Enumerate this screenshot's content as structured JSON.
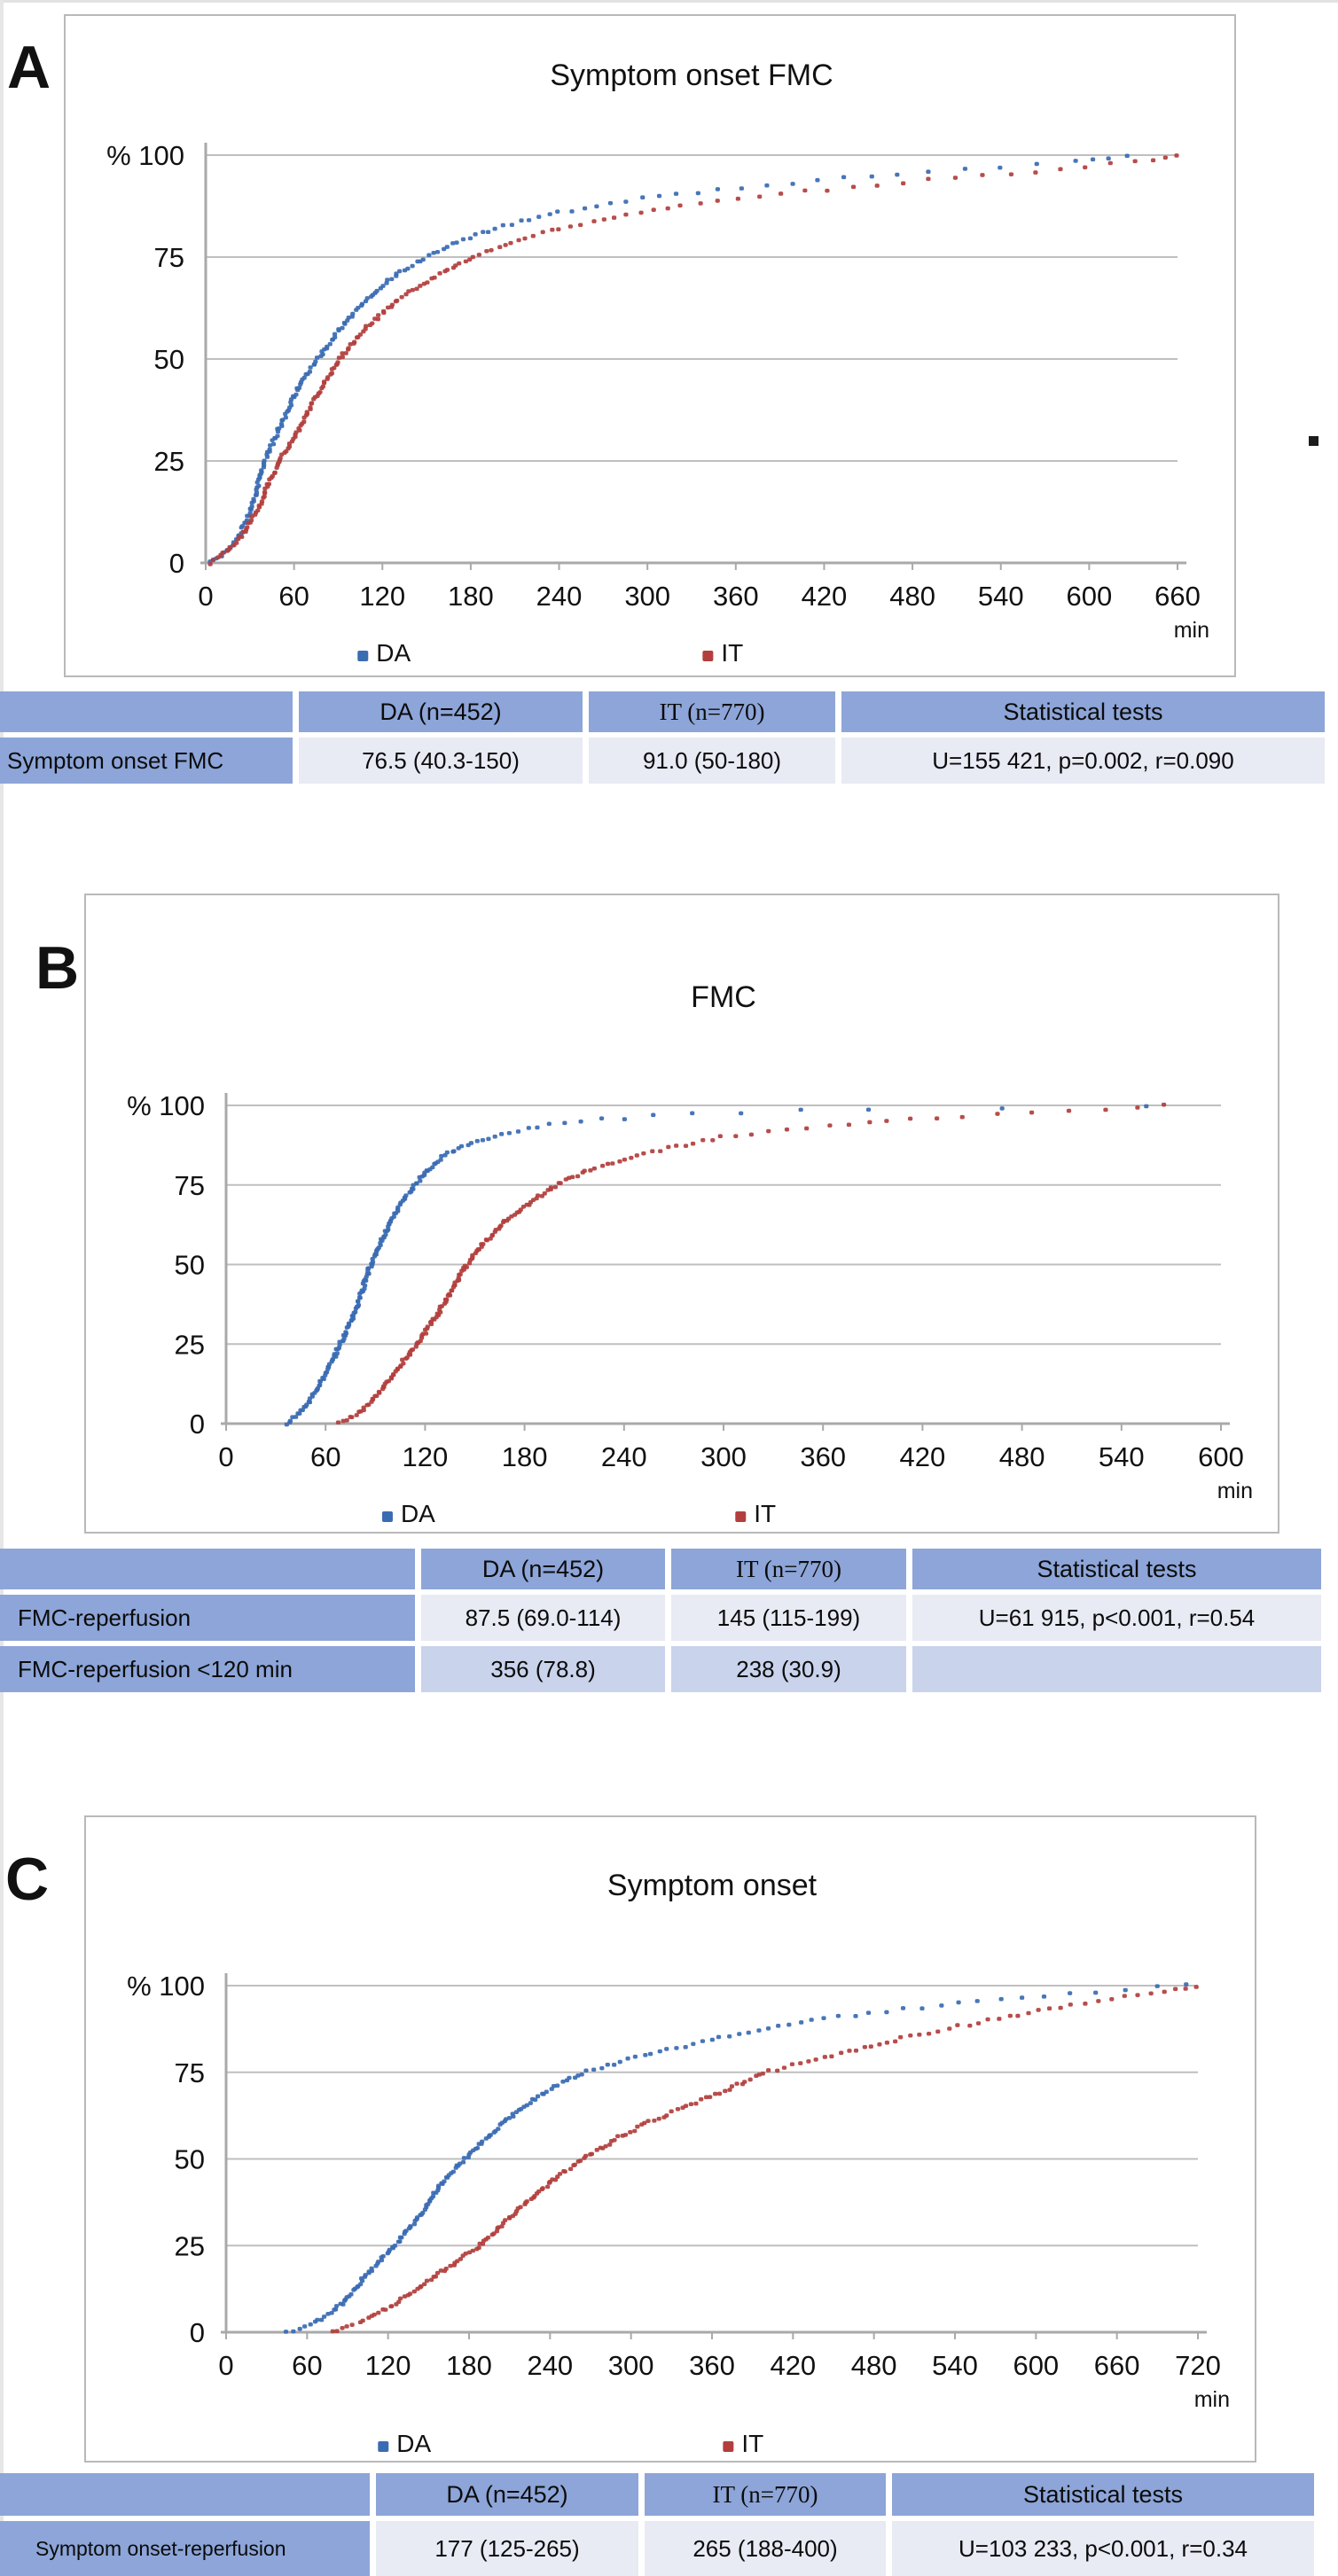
{
  "panels": [
    {
      "label": "A",
      "table": {
        "headers": [
          "",
          "DA (n=452)",
          "IT (n=770)",
          "Statistical tests"
        ],
        "rows": [
          [
            "Symptom onset FMC",
            "76.5 (40.3-150)",
            "91.0 (50-180)",
            "U=155 421, p=0.002, r=0.090"
          ]
        ]
      }
    },
    {
      "label": "B",
      "table": {
        "headers": [
          "",
          "DA (n=452)",
          "IT (n=770)",
          "Statistical tests"
        ],
        "rows": [
          [
            "FMC-reperfusion",
            "87.5 (69.0-114)",
            "145 (115-199)",
            "U=61 915, p<0.001, r=0.54"
          ],
          [
            "FMC-reperfusion <120 min",
            "356 (78.8)",
            "238 (30.9)",
            ""
          ]
        ]
      }
    },
    {
      "label": "C",
      "table": {
        "headers": [
          "",
          "DA (n=452)",
          "IT (n=770)",
          "Statistical tests"
        ],
        "rows": [
          [
            "Symptom onset-reperfusion",
            "177 (125-265)",
            "265 (188-400)",
            "U=103 233, p<0.001, r=0.34"
          ]
        ]
      }
    }
  ],
  "colors": {
    "series_da": "#3a6cb3",
    "series_it": "#b23f3d",
    "table_header": "#8da5d8",
    "table_row_light": "#e8eaf4",
    "table_row_alt": "#c9d3ec"
  },
  "chart_data": [
    {
      "type": "scatter",
      "title": "Symptom onset FMC",
      "x_unit": "min",
      "y_prefix": "%",
      "ylim": [
        0,
        100
      ],
      "xlim": [
        0,
        660
      ],
      "x_max": 660,
      "grid": "horizontal",
      "legend_position": "bottom",
      "y_ticks": [
        100,
        75,
        50,
        25,
        0
      ],
      "x_ticks": [
        0,
        60,
        120,
        180,
        240,
        300,
        360,
        420,
        480,
        540,
        600,
        660
      ],
      "series": [
        {
          "name": "DA",
          "color": "#3a6cb3",
          "median": 76.5,
          "iqr": [
            40.3,
            150
          ],
          "points": [
            [
              3,
              0
            ],
            [
              12,
              2
            ],
            [
              22,
              6
            ],
            [
              30,
              12
            ],
            [
              40,
              25
            ],
            [
              50,
              33
            ],
            [
              60,
              41
            ],
            [
              70,
              47
            ],
            [
              76.5,
              50
            ],
            [
              90,
              57
            ],
            [
              105,
              63
            ],
            [
              120,
              68
            ],
            [
              135,
              72
            ],
            [
              150,
              75
            ],
            [
              170,
              78.5
            ],
            [
              200,
              82.5
            ],
            [
              240,
              86
            ],
            [
              280,
              88.5
            ],
            [
              320,
              90.5
            ],
            [
              360,
              92
            ],
            [
              420,
              94
            ],
            [
              480,
              95.8
            ],
            [
              540,
              97.2
            ],
            [
              590,
              98.3
            ],
            [
              625,
              100
            ]
          ]
        },
        {
          "name": "IT",
          "color": "#b23f3d",
          "median": 91.0,
          "iqr": [
            50,
            180
          ],
          "points": [
            [
              3,
              0
            ],
            [
              15,
              3
            ],
            [
              25,
              7
            ],
            [
              35,
              13
            ],
            [
              50,
              25
            ],
            [
              62,
              32
            ],
            [
              75,
              41
            ],
            [
              91,
              50
            ],
            [
              110,
              58
            ],
            [
              130,
              64.5
            ],
            [
              155,
              70
            ],
            [
              180,
              75
            ],
            [
              210,
              79
            ],
            [
              240,
              82
            ],
            [
              280,
              85
            ],
            [
              320,
              87.5
            ],
            [
              360,
              89.3
            ],
            [
              420,
              91.5
            ],
            [
              480,
              93.5
            ],
            [
              540,
              95.3
            ],
            [
              600,
              97.3
            ],
            [
              640,
              98.6
            ],
            [
              660,
              100
            ]
          ]
        }
      ]
    },
    {
      "type": "scatter",
      "title": "FMC",
      "x_unit": "min",
      "y_prefix": "%",
      "ylim": [
        0,
        100
      ],
      "xlim": [
        0,
        600
      ],
      "x_max": 600,
      "grid": "horizontal",
      "legend_position": "bottom",
      "y_ticks": [
        100,
        75,
        50,
        25,
        0
      ],
      "x_ticks": [
        0,
        60,
        120,
        180,
        240,
        300,
        360,
        420,
        480,
        540,
        600
      ],
      "series": [
        {
          "name": "DA",
          "color": "#3a6cb3",
          "median": 87.5,
          "iqr": [
            69.0,
            114
          ],
          "points": [
            [
              37,
              0
            ],
            [
              44,
              3
            ],
            [
              50,
              7
            ],
            [
              56,
              12
            ],
            [
              62,
              18
            ],
            [
              69,
              25
            ],
            [
              76,
              33
            ],
            [
              82,
              42
            ],
            [
              87.5,
              50
            ],
            [
              94,
              58
            ],
            [
              101,
              65
            ],
            [
              108,
              71
            ],
            [
              114,
              75
            ],
            [
              122,
              80
            ],
            [
              131,
              84
            ],
            [
              142,
              87
            ],
            [
              155,
              89.5
            ],
            [
              170,
              91.5
            ],
            [
              190,
              93.5
            ],
            [
              215,
              95
            ],
            [
              245,
              96.3
            ],
            [
              285,
              97.3
            ],
            [
              330,
              98.1
            ],
            [
              390,
              98.9
            ],
            [
              460,
              99.4
            ],
            [
              520,
              99.7
            ],
            [
              555,
              100
            ]
          ]
        },
        {
          "name": "IT",
          "color": "#b23f3d",
          "median": 145,
          "iqr": [
            115,
            199
          ],
          "points": [
            [
              68,
              0
            ],
            [
              76,
              2
            ],
            [
              86,
              6
            ],
            [
              96,
              12
            ],
            [
              106,
              19
            ],
            [
              115,
              25
            ],
            [
              126,
              33
            ],
            [
              136,
              42
            ],
            [
              145,
              50
            ],
            [
              156,
              57
            ],
            [
              167,
              63
            ],
            [
              182,
              69
            ],
            [
              199,
              75
            ],
            [
              218,
              79.5
            ],
            [
              242,
              83.5
            ],
            [
              270,
              87
            ],
            [
              300,
              90
            ],
            [
              330,
              91.8
            ],
            [
              365,
              93.3
            ],
            [
              400,
              95
            ],
            [
              440,
              96.5
            ],
            [
              480,
              97.6
            ],
            [
              520,
              98.6
            ],
            [
              545,
              99.3
            ],
            [
              565,
              100
            ]
          ]
        }
      ]
    },
    {
      "type": "scatter",
      "title": "Symptom onset",
      "x_unit": "min",
      "y_prefix": "%",
      "ylim": [
        0,
        100
      ],
      "xlim": [
        0,
        720
      ],
      "x_max": 720,
      "grid": "horizontal",
      "legend_position": "bottom",
      "y_ticks": [
        100,
        75,
        50,
        25,
        0
      ],
      "x_ticks": [
        0,
        60,
        120,
        180,
        240,
        300,
        360,
        420,
        480,
        540,
        600,
        660,
        720
      ],
      "series": [
        {
          "name": "DA",
          "color": "#3a6cb3",
          "median": 177,
          "iqr": [
            125,
            265
          ],
          "points": [
            [
              45,
              0
            ],
            [
              62,
              2
            ],
            [
              76,
              5
            ],
            [
              90,
              10
            ],
            [
              105,
              17
            ],
            [
              125,
              25
            ],
            [
              142,
              33
            ],
            [
              160,
              43
            ],
            [
              177,
              50
            ],
            [
              196,
              57
            ],
            [
              215,
              63.5
            ],
            [
              235,
              69
            ],
            [
              252,
              72.5
            ],
            [
              265,
              75
            ],
            [
              290,
              77.8
            ],
            [
              320,
              80.8
            ],
            [
              350,
              83.5
            ],
            [
              380,
              86
            ],
            [
              410,
              88.3
            ],
            [
              440,
              90.3
            ],
            [
              480,
              92.3
            ],
            [
              520,
              94
            ],
            [
              560,
              95.6
            ],
            [
              600,
              97
            ],
            [
              640,
              98.2
            ],
            [
              680,
              99.2
            ],
            [
              712,
              100
            ]
          ]
        },
        {
          "name": "IT",
          "color": "#b23f3d",
          "median": 265,
          "iqr": [
            188,
            400
          ],
          "points": [
            [
              78,
              0
            ],
            [
              100,
              3
            ],
            [
              120,
              7
            ],
            [
              140,
              12
            ],
            [
              158,
              17
            ],
            [
              173,
              21
            ],
            [
              188,
              25
            ],
            [
              206,
              31.5
            ],
            [
              226,
              38.5
            ],
            [
              246,
              45
            ],
            [
              265,
              50
            ],
            [
              290,
              56
            ],
            [
              315,
              61
            ],
            [
              340,
              65
            ],
            [
              365,
              69
            ],
            [
              400,
              75
            ],
            [
              430,
              78
            ],
            [
              462,
              81
            ],
            [
              500,
              84.8
            ],
            [
              540,
              88
            ],
            [
              580,
              91
            ],
            [
              620,
              94
            ],
            [
              655,
              96
            ],
            [
              690,
              98
            ],
            [
              718,
              100
            ]
          ]
        }
      ]
    }
  ]
}
